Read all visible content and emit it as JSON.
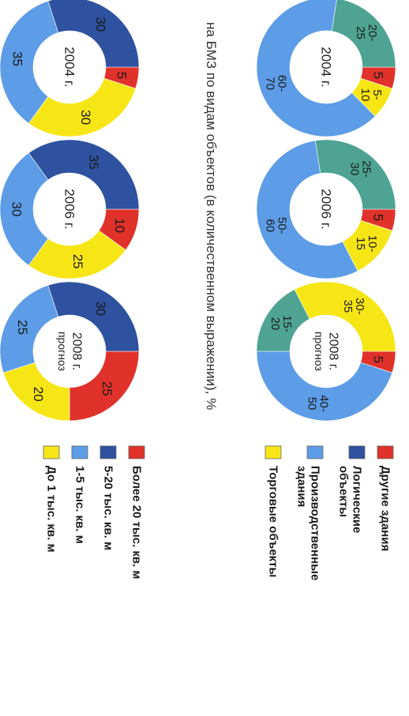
{
  "caption": "на БМЗ по видам объектов (в количественном выражении), %",
  "colors": {
    "red": "#e0322a",
    "navy": "#2e52a0",
    "lightblue": "#5d9ce6",
    "yellow": "#f7e615",
    "teal": "#4ea393"
  },
  "chart_data": [
    {
      "type": "donut",
      "center": [
        "2004 г."
      ],
      "series": [
        {
          "name": "Более 20 тыс. кв. м",
          "value": 5,
          "label": "5",
          "color": "#e0322a"
        },
        {
          "name": "До 1 тыс. кв. м",
          "value": 30,
          "label": "30",
          "color": "#f7e615"
        },
        {
          "name": "1-5 тыс. кв. м",
          "value": 35,
          "label": "35",
          "color": "#5d9ce6"
        },
        {
          "name": "5-20 тыс. кв. м",
          "value": 30,
          "label": "30",
          "color": "#2e52a0"
        }
      ]
    },
    {
      "type": "donut",
      "center": [
        "2006 г."
      ],
      "series": [
        {
          "name": "Более 20 тыс. кв. м",
          "value": 10,
          "label": "10",
          "color": "#e0322a"
        },
        {
          "name": "До 1 тыс. кв. м",
          "value": 25,
          "label": "25",
          "color": "#f7e615"
        },
        {
          "name": "1-5 тыс. кв. м",
          "value": 30,
          "label": "30",
          "color": "#5d9ce6"
        },
        {
          "name": "5-20 тыс. кв. м",
          "value": 35,
          "label": "35",
          "color": "#2e52a0"
        }
      ]
    },
    {
      "type": "donut",
      "center": [
        "2008 г.",
        "прогноз"
      ],
      "series": [
        {
          "name": "Более 20 тыс. кв. м",
          "value": 25,
          "label": "25",
          "color": "#e0322a"
        },
        {
          "name": "До 1 тыс. кв. м",
          "value": 20,
          "label": "20",
          "color": "#f7e615"
        },
        {
          "name": "1-5 тыс. кв. м",
          "value": 25,
          "label": "25",
          "color": "#5d9ce6"
        },
        {
          "name": "5-20 тыс. кв. м",
          "value": 30,
          "label": "30",
          "color": "#2e52a0"
        }
      ]
    },
    {
      "type": "donut",
      "center": [
        "2004 г."
      ],
      "series": [
        {
          "name": "Другие здания",
          "value": 5,
          "label": [
            "5"
          ],
          "color": "#e0322a"
        },
        {
          "name": "Торговые объекты",
          "value": 7.5,
          "label": [
            "5-",
            "10"
          ],
          "color": "#f7e615"
        },
        {
          "name": "Производственные здания",
          "value": 65,
          "label": [
            "60-",
            "70"
          ],
          "color": "#5d9ce6"
        },
        {
          "name": "Логические объекты",
          "value": 22.5,
          "label": [
            "20-",
            "25"
          ],
          "color": "#4ea393"
        }
      ]
    },
    {
      "type": "donut",
      "center": [
        "2006 г."
      ],
      "series": [
        {
          "name": "Другие здания",
          "value": 5,
          "label": [
            "5"
          ],
          "color": "#e0322a"
        },
        {
          "name": "Торговые объекты",
          "value": 12.5,
          "label": [
            "10-",
            "15"
          ],
          "color": "#f7e615"
        },
        {
          "name": "Производственные здания",
          "value": 55,
          "label": [
            "50-",
            "60"
          ],
          "color": "#5d9ce6"
        },
        {
          "name": "Логические объекты",
          "value": 27.5,
          "label": [
            "25-",
            "30"
          ],
          "color": "#4ea393"
        }
      ]
    },
    {
      "type": "donut",
      "center": [
        "2008 г.",
        "прогноз"
      ],
      "series": [
        {
          "name": "Другие здания",
          "value": 5,
          "label": [
            "5"
          ],
          "color": "#e0322a"
        },
        {
          "name": "Производственные здания",
          "value": 45,
          "label": [
            "40-",
            "50"
          ],
          "color": "#5d9ce6"
        },
        {
          "name": "Логические объекты",
          "value": 17.5,
          "label": [
            "15-",
            "20"
          ],
          "color": "#4ea393"
        },
        {
          "name": "Торговые объекты",
          "value": 32.5,
          "label": [
            "30-",
            "35"
          ],
          "color": "#f7e615"
        }
      ]
    }
  ],
  "legend_top": [
    {
      "label": "Более 20 тыс. кв. м",
      "color": "#e0322a"
    },
    {
      "label": "5-20 тыс. кв. м",
      "color": "#2e52a0"
    },
    {
      "label": "1-5 тыс. кв. м",
      "color": "#5d9ce6"
    },
    {
      "label": "До 1 тыс. кв. м",
      "color": "#f7e615"
    }
  ],
  "legend_bottom": [
    {
      "lines": [
        "Другие здания"
      ],
      "color": "#e0322a"
    },
    {
      "lines": [
        "Логические",
        "объекты"
      ],
      "color": "#2e52a0"
    },
    {
      "lines": [
        "Производственные",
        "здания"
      ],
      "color": "#5d9ce6"
    },
    {
      "lines": [
        "Торговые объекты"
      ],
      "color": "#f7e615"
    }
  ]
}
